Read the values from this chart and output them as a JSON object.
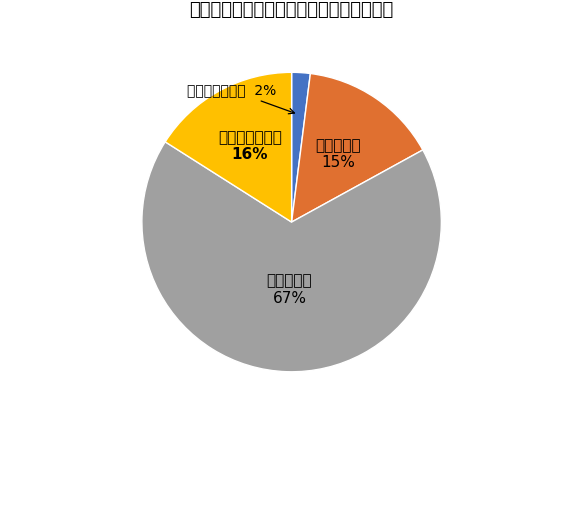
{
  "title": "ヨガは顔痩せに効果があると思いますか？",
  "slices": [
    {
      "label": "凄くあると思う",
      "pct": 2,
      "color": "#4472C4"
    },
    {
      "label": "あると思う",
      "pct": 15,
      "color": "#E07030"
    },
    {
      "label": "実感はない",
      "pct": 67,
      "color": "#A0A0A0"
    },
    {
      "label": "全く効果はない",
      "pct": 16,
      "color": "#FFC000"
    }
  ],
  "title_fontsize": 13,
  "label_fontsize": 11,
  "annotation_fontsize": 10,
  "bg_color": "#FFFFFF",
  "start_angle": 90
}
